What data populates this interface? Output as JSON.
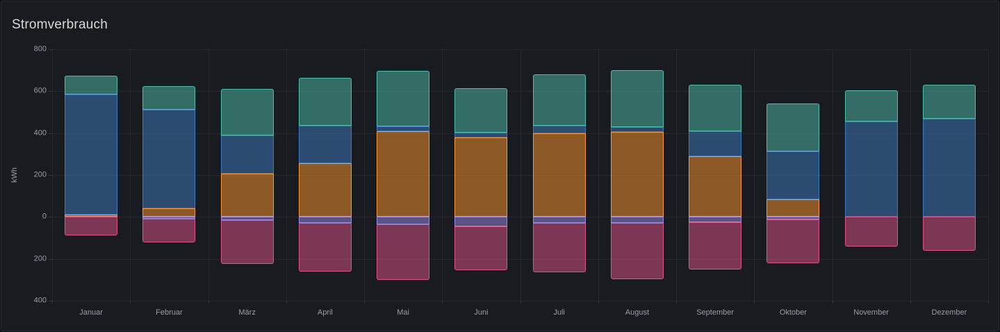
{
  "panel": {
    "title": "Stromverbrauch",
    "background": "#181b1f",
    "page_background": "#0f1013",
    "border_color": "#2a2d33",
    "title_color": "#d8d9da",
    "text_color": "#9a9ea8",
    "grid_color": "rgba(204,204,220,0.08)"
  },
  "chart_data": {
    "type": "bar",
    "stacked": true,
    "orientation": "vertical",
    "title": "Stromverbrauch",
    "xlabel": "",
    "ylabel": "kWh",
    "ylim": [
      -400,
      800
    ],
    "y_ticks": [
      800,
      600,
      400,
      200,
      0,
      -200,
      -400
    ],
    "y_tick_labels": [
      "800",
      "600",
      "400",
      "200",
      "0",
      "200",
      "400"
    ],
    "grid": true,
    "legend": "none",
    "categories": [
      "Januar",
      "Februar",
      "März",
      "April",
      "Mai",
      "Juni",
      "Juli",
      "August",
      "September",
      "Oktober",
      "November",
      "Dezember"
    ],
    "series": [
      {
        "name": "orange",
        "color": "#FF9830",
        "stack": "positive",
        "values": [
          10,
          40,
          205,
          255,
          410,
          378,
          400,
          405,
          290,
          85,
          0,
          0
        ]
      },
      {
        "name": "blue",
        "color": "#3D7BC2",
        "stack": "positive",
        "values": [
          575,
          470,
          185,
          180,
          22,
          25,
          35,
          25,
          120,
          228,
          455,
          470
        ]
      },
      {
        "name": "teal",
        "color": "#4DBFAD",
        "stack": "positive",
        "values": [
          90,
          115,
          220,
          230,
          265,
          210,
          245,
          270,
          220,
          230,
          150,
          160
        ]
      },
      {
        "name": "purple",
        "color": "#9D8CE8",
        "stack": "negative",
        "values": [
          0,
          8,
          15,
          30,
          35,
          45,
          28,
          28,
          25,
          12,
          0,
          0
        ]
      },
      {
        "name": "pink",
        "color": "#E0538A",
        "stack": "negative",
        "values": [
          90,
          112,
          210,
          230,
          265,
          210,
          237,
          270,
          225,
          208,
          140,
          160
        ]
      }
    ]
  }
}
